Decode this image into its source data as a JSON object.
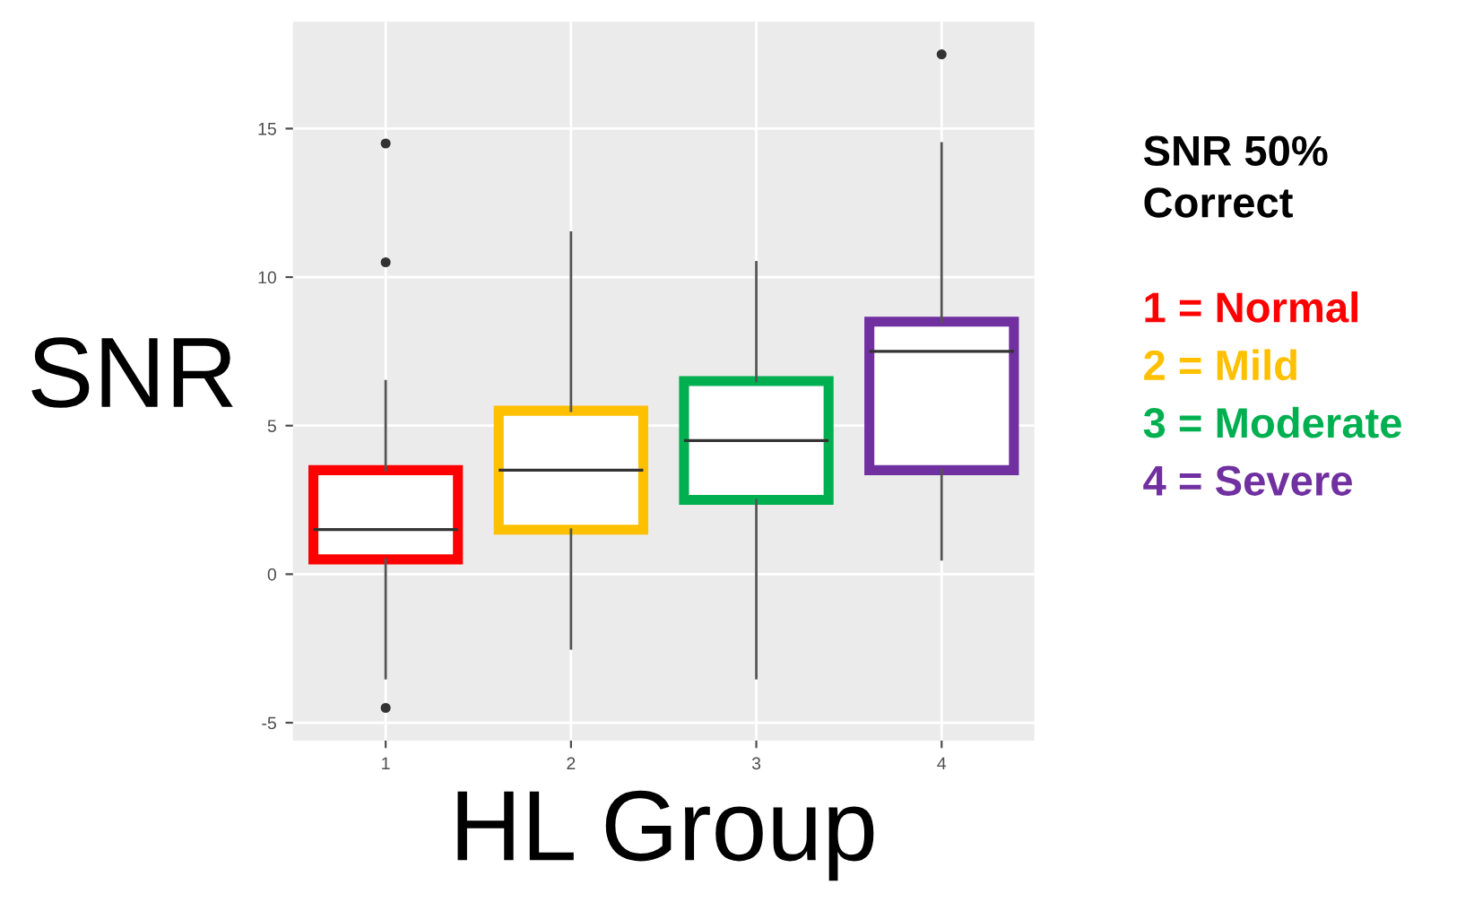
{
  "chart_data": {
    "type": "box",
    "title": "SNR 50% Correct",
    "xlabel": "HL Group",
    "ylabel": "SNR",
    "categories": [
      "1",
      "2",
      "3",
      "4"
    ],
    "boxes": [
      {
        "low": -3.5,
        "q1": 0.5,
        "median": 1.5,
        "q3": 3.5,
        "high": 6.5,
        "outliers": [
          10.5,
          14.5,
          -4.5
        ]
      },
      {
        "low": -2.5,
        "q1": 1.5,
        "median": 3.5,
        "q3": 5.5,
        "high": 11.5
      },
      {
        "low": -3.5,
        "q1": 2.5,
        "median": 4.5,
        "q3": 6.5,
        "high": 10.5
      },
      {
        "low": 0.5,
        "q1": 3.5,
        "median": 7.5,
        "q3": 8.5,
        "high": 14.5,
        "outliers": [
          17.5
        ]
      }
    ],
    "colors": [
      "#ff0000",
      "#ffc000",
      "#00b050",
      "#7030a0"
    ],
    "annotations": [
      "1 = Normal",
      "2 = Mild",
      "3 = Moderate",
      "4 = Severe"
    ],
    "ylim": [
      -5.6,
      18.6
    ],
    "yticks": [
      -5,
      0,
      5,
      10,
      15
    ],
    "grid": true
  }
}
